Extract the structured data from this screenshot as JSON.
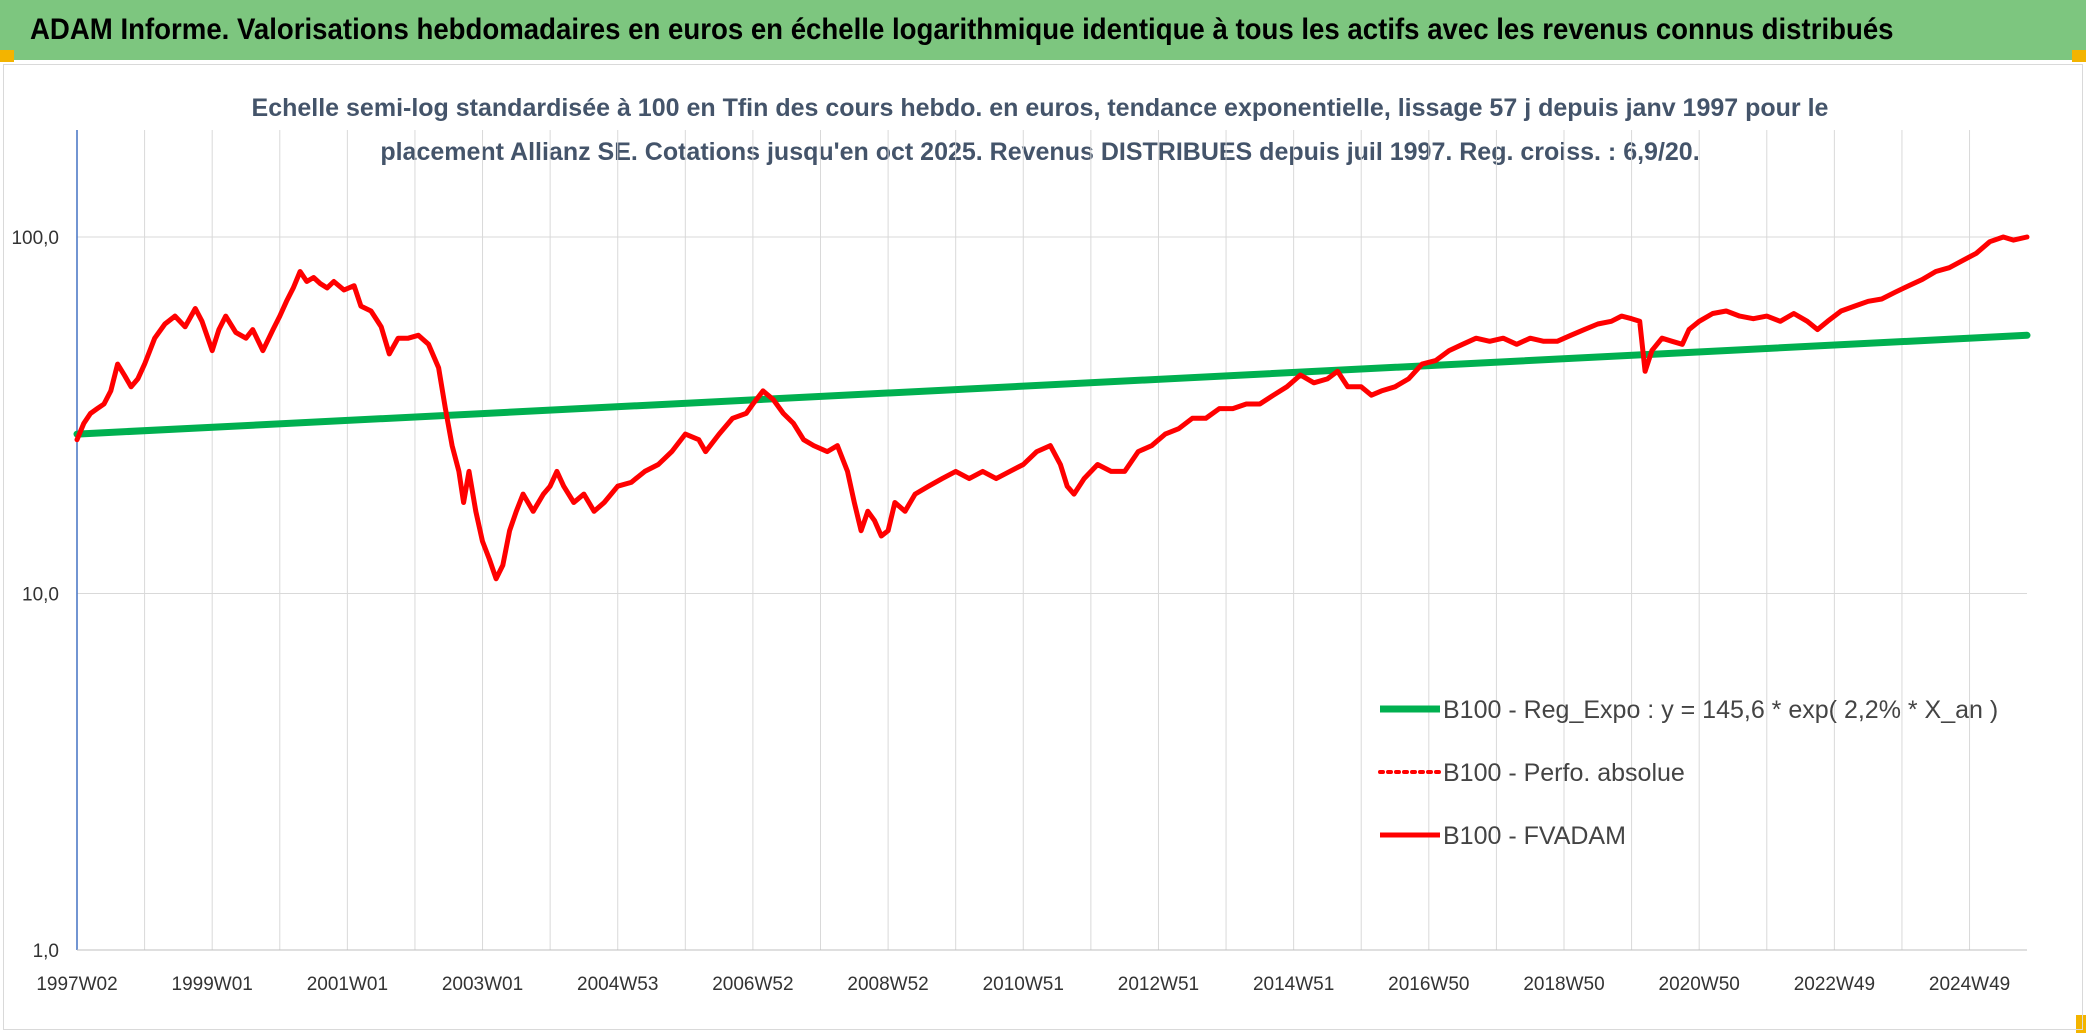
{
  "banner": {
    "title": "ADAM Informe. Valorisations hebdomadaires en euros en échelle logarithmique identique à tous les actifs avec les revenus connus distribués"
  },
  "colors": {
    "banner_bg": "#7dc67f",
    "corner_accent": "#f3b400",
    "series_regression": "#00b050",
    "series_fvadam": "#ff0000",
    "series_perf": "#ff0000",
    "grid": "#d9d9d9",
    "y_axis_line": "#4472c4"
  },
  "chart_data": {
    "type": "line",
    "scale": "log10",
    "subtitle_lines": [
      "Echelle semi-log standardisée à 100 en Tfin des cours hebdo. en euros, tendance exponentielle, lissage 57 j depuis janv 1997 pour le",
      "placement Allianz SE. Cotations jusqu'en oct 2025. Revenus DISTRIBUES depuis juil 1997. Reg. croiss. : 6,9/20."
    ],
    "ylim": [
      1,
      100
    ],
    "y_ticks": [
      {
        "value": 1,
        "label": "1,0"
      },
      {
        "value": 10,
        "label": "10,0"
      },
      {
        "value": 100,
        "label": "100,0"
      }
    ],
    "xlim": [
      1997.0,
      2025.85
    ],
    "x_ticks": [
      {
        "x": 1997.0,
        "label": "1997W02"
      },
      {
        "x": 1999.0,
        "label": "1999W01"
      },
      {
        "x": 2001.0,
        "label": "2001W01"
      },
      {
        "x": 2003.0,
        "label": "2003W01"
      },
      {
        "x": 2005.0,
        "label": "2004W53"
      },
      {
        "x": 2007.0,
        "label": "2006W52"
      },
      {
        "x": 2009.0,
        "label": "2008W52"
      },
      {
        "x": 2011.0,
        "label": "2010W51"
      },
      {
        "x": 2013.0,
        "label": "2012W51"
      },
      {
        "x": 2015.0,
        "label": "2014W51"
      },
      {
        "x": 2017.0,
        "label": "2016W50"
      },
      {
        "x": 2019.0,
        "label": "2018W50"
      },
      {
        "x": 2021.0,
        "label": "2020W50"
      },
      {
        "x": 2023.0,
        "label": "2022W49"
      },
      {
        "x": 2025.0,
        "label": "2024W49"
      }
    ],
    "grid": true,
    "legend_position": "lower-right",
    "series": [
      {
        "name": "B100 - Reg_Expo : y = 145,6 * exp( 2,2% *  X_an )",
        "style": "solid",
        "points": [
          [
            1997.0,
            28.0
          ],
          [
            2025.85,
            53.0
          ]
        ]
      },
      {
        "name": "B100 - Perfo. absolue",
        "style": "dotted",
        "points": []
      },
      {
        "name": "B100 - FVADAM",
        "style": "solid",
        "points": [
          [
            1997.0,
            27
          ],
          [
            1997.1,
            30
          ],
          [
            1997.2,
            32
          ],
          [
            1997.3,
            33
          ],
          [
            1997.4,
            34
          ],
          [
            1997.5,
            37
          ],
          [
            1997.6,
            44
          ],
          [
            1997.7,
            41
          ],
          [
            1997.8,
            38
          ],
          [
            1997.9,
            40
          ],
          [
            1998.0,
            44
          ],
          [
            1998.15,
            52
          ],
          [
            1998.3,
            57
          ],
          [
            1998.45,
            60
          ],
          [
            1998.6,
            56
          ],
          [
            1998.75,
            63
          ],
          [
            1998.85,
            58
          ],
          [
            1999.0,
            48
          ],
          [
            1999.1,
            55
          ],
          [
            1999.2,
            60
          ],
          [
            1999.35,
            54
          ],
          [
            1999.5,
            52
          ],
          [
            1999.6,
            55
          ],
          [
            1999.75,
            48
          ],
          [
            1999.9,
            55
          ],
          [
            2000.0,
            60
          ],
          [
            2000.1,
            66
          ],
          [
            2000.2,
            72
          ],
          [
            2000.3,
            80
          ],
          [
            2000.4,
            75
          ],
          [
            2000.5,
            77
          ],
          [
            2000.6,
            74
          ],
          [
            2000.7,
            72
          ],
          [
            2000.8,
            75
          ],
          [
            2000.95,
            71
          ],
          [
            2001.1,
            73
          ],
          [
            2001.2,
            64
          ],
          [
            2001.35,
            62
          ],
          [
            2001.5,
            56
          ],
          [
            2001.62,
            47
          ],
          [
            2001.75,
            52
          ],
          [
            2001.9,
            52
          ],
          [
            2002.05,
            53
          ],
          [
            2002.2,
            50
          ],
          [
            2002.35,
            43
          ],
          [
            2002.45,
            33
          ],
          [
            2002.55,
            26
          ],
          [
            2002.65,
            22
          ],
          [
            2002.72,
            18
          ],
          [
            2002.8,
            22
          ],
          [
            2002.9,
            17
          ],
          [
            2003.0,
            14
          ],
          [
            2003.1,
            12.5
          ],
          [
            2003.2,
            11
          ],
          [
            2003.3,
            12
          ],
          [
            2003.4,
            15
          ],
          [
            2003.5,
            17
          ],
          [
            2003.6,
            19
          ],
          [
            2003.75,
            17
          ],
          [
            2003.9,
            19
          ],
          [
            2004.0,
            20
          ],
          [
            2004.1,
            22
          ],
          [
            2004.2,
            20
          ],
          [
            2004.35,
            18
          ],
          [
            2004.5,
            19
          ],
          [
            2004.65,
            17
          ],
          [
            2004.8,
            18
          ],
          [
            2005.0,
            20
          ],
          [
            2005.2,
            20.5
          ],
          [
            2005.4,
            22
          ],
          [
            2005.6,
            23
          ],
          [
            2005.8,
            25
          ],
          [
            2006.0,
            28
          ],
          [
            2006.2,
            27
          ],
          [
            2006.3,
            25
          ],
          [
            2006.5,
            28
          ],
          [
            2006.7,
            31
          ],
          [
            2006.9,
            32
          ],
          [
            2007.0,
            34
          ],
          [
            2007.15,
            37
          ],
          [
            2007.3,
            35
          ],
          [
            2007.45,
            32
          ],
          [
            2007.6,
            30
          ],
          [
            2007.75,
            27
          ],
          [
            2007.9,
            26
          ],
          [
            2008.1,
            25
          ],
          [
            2008.25,
            26
          ],
          [
            2008.4,
            22
          ],
          [
            2008.5,
            18
          ],
          [
            2008.6,
            15
          ],
          [
            2008.7,
            17
          ],
          [
            2008.8,
            16
          ],
          [
            2008.9,
            14.5
          ],
          [
            2009.0,
            15
          ],
          [
            2009.1,
            18
          ],
          [
            2009.25,
            17
          ],
          [
            2009.4,
            19
          ],
          [
            2009.6,
            20
          ],
          [
            2009.8,
            21
          ],
          [
            2010.0,
            22
          ],
          [
            2010.2,
            21
          ],
          [
            2010.4,
            22
          ],
          [
            2010.6,
            21
          ],
          [
            2010.8,
            22
          ],
          [
            2011.0,
            23
          ],
          [
            2011.2,
            25
          ],
          [
            2011.4,
            26
          ],
          [
            2011.55,
            23
          ],
          [
            2011.65,
            20
          ],
          [
            2011.75,
            19
          ],
          [
            2011.9,
            21
          ],
          [
            2012.1,
            23
          ],
          [
            2012.3,
            22
          ],
          [
            2012.5,
            22
          ],
          [
            2012.7,
            25
          ],
          [
            2012.9,
            26
          ],
          [
            2013.1,
            28
          ],
          [
            2013.3,
            29
          ],
          [
            2013.5,
            31
          ],
          [
            2013.7,
            31
          ],
          [
            2013.9,
            33
          ],
          [
            2014.1,
            33
          ],
          [
            2014.3,
            34
          ],
          [
            2014.5,
            34
          ],
          [
            2014.7,
            36
          ],
          [
            2014.9,
            38
          ],
          [
            2015.1,
            41
          ],
          [
            2015.3,
            39
          ],
          [
            2015.5,
            40
          ],
          [
            2015.65,
            42
          ],
          [
            2015.8,
            38
          ],
          [
            2016.0,
            38
          ],
          [
            2016.15,
            36
          ],
          [
            2016.3,
            37
          ],
          [
            2016.5,
            38
          ],
          [
            2016.7,
            40
          ],
          [
            2016.9,
            44
          ],
          [
            2017.1,
            45
          ],
          [
            2017.3,
            48
          ],
          [
            2017.5,
            50
          ],
          [
            2017.7,
            52
          ],
          [
            2017.9,
            51
          ],
          [
            2018.1,
            52
          ],
          [
            2018.3,
            50
          ],
          [
            2018.5,
            52
          ],
          [
            2018.7,
            51
          ],
          [
            2018.9,
            51
          ],
          [
            2019.1,
            53
          ],
          [
            2019.3,
            55
          ],
          [
            2019.5,
            57
          ],
          [
            2019.7,
            58
          ],
          [
            2019.85,
            60
          ],
          [
            2020.0,
            59
          ],
          [
            2020.12,
            58
          ],
          [
            2020.2,
            42
          ],
          [
            2020.3,
            48
          ],
          [
            2020.45,
            52
          ],
          [
            2020.6,
            51
          ],
          [
            2020.75,
            50
          ],
          [
            2020.85,
            55
          ],
          [
            2021.0,
            58
          ],
          [
            2021.2,
            61
          ],
          [
            2021.4,
            62
          ],
          [
            2021.6,
            60
          ],
          [
            2021.8,
            59
          ],
          [
            2022.0,
            60
          ],
          [
            2022.2,
            58
          ],
          [
            2022.4,
            61
          ],
          [
            2022.6,
            58
          ],
          [
            2022.75,
            55
          ],
          [
            2022.9,
            58
          ],
          [
            2023.1,
            62
          ],
          [
            2023.3,
            64
          ],
          [
            2023.5,
            66
          ],
          [
            2023.7,
            67
          ],
          [
            2023.9,
            70
          ],
          [
            2024.1,
            73
          ],
          [
            2024.3,
            76
          ],
          [
            2024.5,
            80
          ],
          [
            2024.7,
            82
          ],
          [
            2024.9,
            86
          ],
          [
            2025.1,
            90
          ],
          [
            2025.3,
            97
          ],
          [
            2025.5,
            100
          ],
          [
            2025.65,
            98
          ],
          [
            2025.85,
            100
          ]
        ]
      }
    ]
  }
}
